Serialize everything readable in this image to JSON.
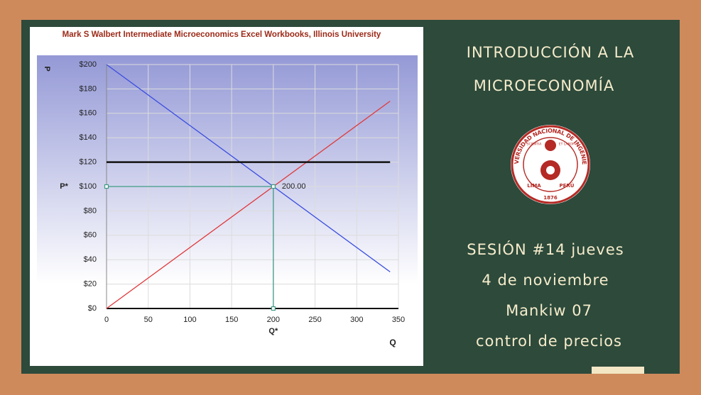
{
  "chart_data": {
    "type": "line",
    "title": "Mark S Walbert Intermediate Microeconomics Excel Workbooks, Illinois University",
    "x_label": "Q",
    "y_label": "P",
    "xlim": [
      0,
      350
    ],
    "xticks": [
      0,
      50,
      100,
      150,
      200,
      250,
      300,
      350
    ],
    "ylim": [
      0,
      200
    ],
    "yticks": [
      {
        "value": 0,
        "label": "$0"
      },
      {
        "value": 20,
        "label": "$20"
      },
      {
        "value": 40,
        "label": "$40"
      },
      {
        "value": 60,
        "label": "$60"
      },
      {
        "value": 80,
        "label": "$80"
      },
      {
        "value": 100,
        "label": "$100"
      },
      {
        "value": 120,
        "label": "$120"
      },
      {
        "value": 140,
        "label": "$140"
      },
      {
        "value": 160,
        "label": "$160"
      },
      {
        "value": 180,
        "label": "$180"
      },
      {
        "value": 200,
        "label": "$200"
      }
    ],
    "grid": true,
    "series": [
      {
        "color": "#3b4ee0",
        "x": [
          0,
          340
        ],
        "values": [
          200,
          30
        ]
      },
      {
        "color": "#e0393b",
        "x": [
          0,
          340
        ],
        "values": [
          0,
          170
        ]
      },
      {
        "color": "#111111",
        "x": [
          0,
          340
        ],
        "values": [
          120,
          120
        ],
        "width": 2.5
      },
      {
        "color": "#3f9a86",
        "x": [
          0,
          200
        ],
        "values": [
          100,
          100
        ],
        "markers": true
      },
      {
        "color": "#3f9a86",
        "x": [
          200,
          200
        ],
        "values": [
          0,
          100
        ],
        "markers": true
      }
    ],
    "annotations": [
      {
        "text": "200.00",
        "x": 200,
        "y": 100
      },
      {
        "text": "P*",
        "y": 100
      },
      {
        "text": "Q*",
        "x": 200
      }
    ]
  },
  "slide": {
    "heading": [
      "INTRODUCCIÓN A LA",
      "MICROECONOMÍA"
    ],
    "logo": {
      "ring": "UNIVERSIDAD NACIONAL DE INGENIERÍA",
      "left": "LIMA",
      "year": "1876",
      "right": "PERÚ",
      "motto_left": "SCIENTIA",
      "motto_right": "ET LABOR"
    },
    "lines": [
      "SESIÓN #14 jueves",
      "4 de noviembre",
      "Mankiw 07",
      "control de precios"
    ]
  }
}
